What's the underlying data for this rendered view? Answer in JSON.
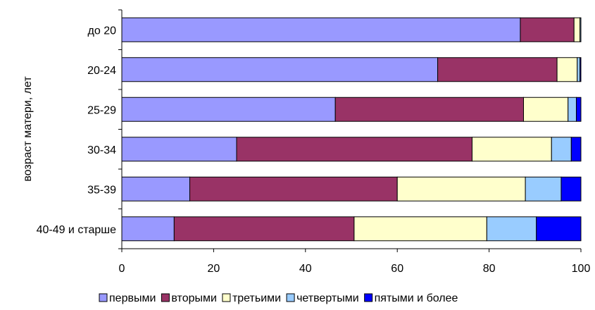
{
  "chart_data": {
    "type": "bar",
    "orientation": "horizontal",
    "stacked": true,
    "ylabel": "возраст матери, лет",
    "xlabel": "",
    "xlim": [
      0,
      100
    ],
    "xticks": [
      0,
      20,
      40,
      60,
      80,
      100
    ],
    "grid": false,
    "legend_position": "bottom",
    "categories": [
      "до 20",
      "20-24",
      "25-29",
      "30-34",
      "35-39",
      "40-49 и старше"
    ],
    "series": [
      {
        "name": "первыми",
        "color": "#9999ff",
        "values": [
          86.8,
          68.8,
          46.5,
          25.0,
          14.8,
          11.4
        ]
      },
      {
        "name": "вторыми",
        "color": "#993366",
        "values": [
          11.7,
          26.0,
          41.0,
          51.3,
          45.2,
          39.2
        ]
      },
      {
        "name": "третьими",
        "color": "#ffffcc",
        "values": [
          1.3,
          4.4,
          9.7,
          17.3,
          27.9,
          28.9
        ]
      },
      {
        "name": "четвертыми",
        "color": "#99ccff",
        "values": [
          0.2,
          0.6,
          1.8,
          4.3,
          7.8,
          10.8
        ]
      },
      {
        "name": "пятыми и более",
        "color": "#0000ff",
        "values": [
          0.0,
          0.2,
          1.0,
          2.1,
          4.3,
          9.7
        ]
      }
    ]
  }
}
